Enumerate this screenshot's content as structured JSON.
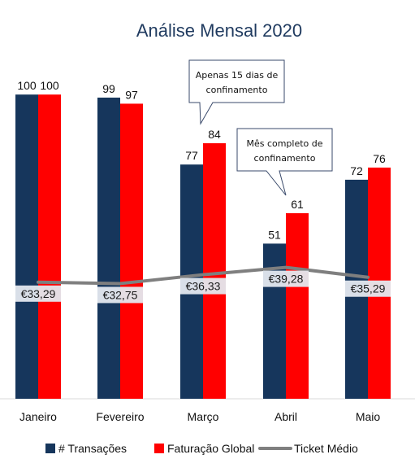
{
  "chart_data": {
    "type": "bar",
    "title": "Análise Mensal 2020",
    "categories": [
      "Janeiro",
      "Fevereiro",
      "Março",
      "Abril",
      "Maio"
    ],
    "ylim": [
      0,
      110
    ],
    "grid": false,
    "legend_position": "bottom",
    "series": [
      {
        "name": "# Transações",
        "type": "bar",
        "color": "#16365c",
        "values": [
          100,
          99,
          77,
          51,
          72
        ]
      },
      {
        "name": "Faturação Global",
        "type": "bar",
        "color": "#ff0000",
        "values": [
          100,
          97,
          84,
          61,
          76
        ]
      },
      {
        "name": "Ticket Médio",
        "type": "line",
        "color": "#7f7f7f",
        "values": [
          33.29,
          32.75,
          36.33,
          39.28,
          35.29
        ],
        "labels": [
          "€33,29",
          "€32,75",
          "€36,33",
          "€39,28",
          "€35,29"
        ]
      }
    ],
    "annotations": [
      {
        "category": "Março",
        "lines": [
          "Apenas 15 dias de",
          "confinamento"
        ]
      },
      {
        "category": "Abril",
        "lines": [
          "Mês completo de",
          "confinamento"
        ]
      }
    ]
  }
}
